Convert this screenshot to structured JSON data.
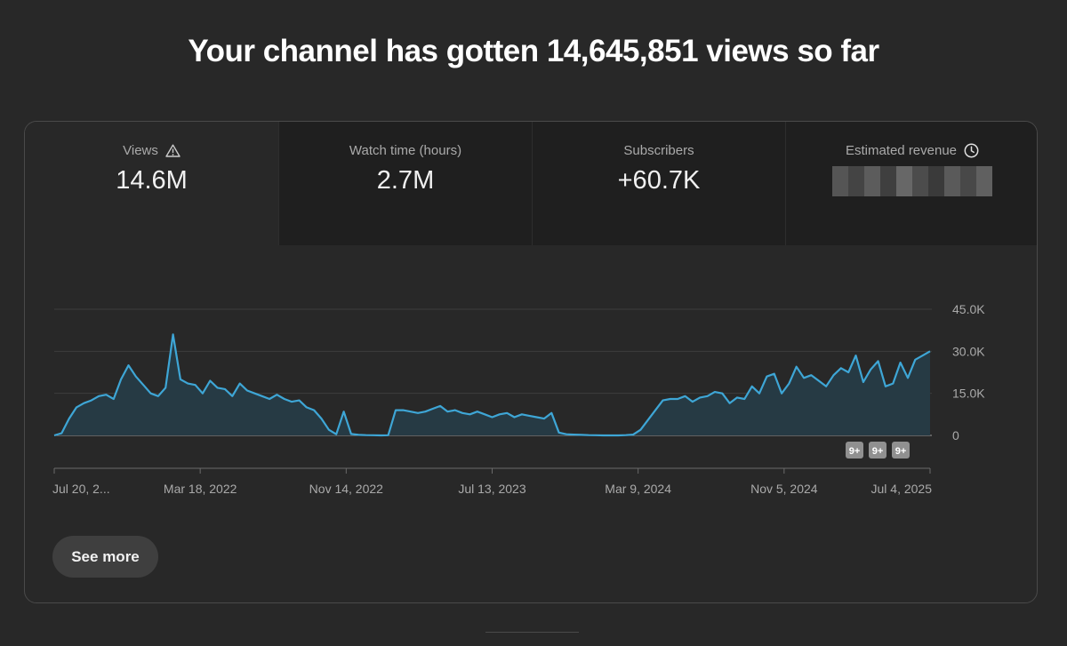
{
  "headline": "Your channel has gotten 14,645,851 views so far",
  "tabs": [
    {
      "label": "Views",
      "value": "14.6M",
      "icon": "warning-icon",
      "active": true
    },
    {
      "label": "Watch time (hours)",
      "value": "2.7M",
      "active": false
    },
    {
      "label": "Subscribers",
      "value": "+60.7K",
      "active": false
    },
    {
      "label": "Estimated revenue",
      "value_hidden": true,
      "icon": "clock-icon",
      "active": false
    }
  ],
  "see_more": "See more",
  "colors": {
    "background": "#282828",
    "tab_inactive": "#1f1f1f",
    "line": "#3ea6d6",
    "area": "#263a44",
    "label": "#aaaaaa"
  },
  "chart_data": {
    "type": "area",
    "x_tick_labels": [
      "Jul 20, 2...",
      "Mar 18, 2022",
      "Nov 14, 2022",
      "Jul 13, 2023",
      "Mar 9, 2024",
      "Nov 5, 2024",
      "Jul 4, 2025"
    ],
    "y_tick_labels": [
      "45.0K",
      "30.0K",
      "15.0K",
      "0"
    ],
    "ylim": [
      0,
      45000
    ],
    "grid": true,
    "badges": [
      "9+",
      "9+",
      "9+"
    ],
    "series": [
      {
        "values": [
          0,
          800,
          6000,
          10000,
          11500,
          12500,
          14000,
          14500,
          13000,
          20000,
          25000,
          21000,
          18000,
          15000,
          14000,
          17000,
          36000,
          20000,
          18500,
          18000,
          15000,
          19500,
          17000,
          16500,
          14000,
          18500,
          16000,
          15000,
          14000,
          13000,
          14500,
          13000,
          12000,
          12500,
          10000,
          9000,
          6000,
          2000,
          400,
          8500,
          500,
          200,
          100,
          50,
          0,
          50,
          9000,
          9000,
          8500,
          8000,
          8500,
          9500,
          10500,
          8500,
          9000,
          8000,
          7500,
          8500,
          7500,
          6500,
          7500,
          8000,
          6500,
          7500,
          7000,
          6500,
          6000,
          8000,
          1000,
          400,
          300,
          200,
          100,
          50,
          0,
          0,
          0,
          100,
          300,
          2000,
          5500,
          9000,
          12500,
          13000,
          13000,
          14000,
          12000,
          13500,
          14000,
          15500,
          15000,
          11500,
          13500,
          13000,
          17500,
          15000,
          21000,
          22000,
          15000,
          18500,
          24500,
          20500,
          21500,
          19500,
          17500,
          21500,
          24000,
          22500,
          28500,
          19000,
          23500,
          26500,
          17500,
          18500,
          26000,
          20500,
          27000,
          28500,
          30000
        ]
      }
    ]
  }
}
